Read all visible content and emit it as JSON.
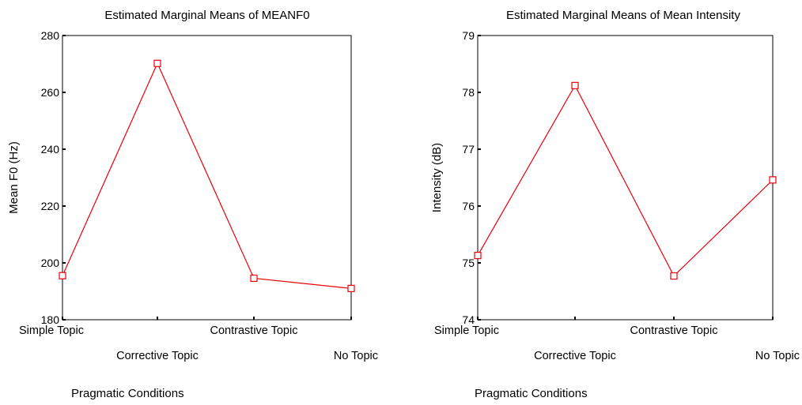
{
  "chart_data": [
    {
      "type": "line",
      "title": "Estimated Marginal Means of MEANF0",
      "xlabel": "Pragmatic Conditions",
      "ylabel": "Mean F0 (Hz)",
      "categories": [
        "Simple Topic",
        "Corrective Topic",
        "Contrastive Topic",
        "No Topic"
      ],
      "ylim": [
        180,
        280
      ],
      "yticks": [
        180,
        200,
        220,
        240,
        260,
        280
      ],
      "series": [
        {
          "values": [
            195.5,
            270.2,
            194.6,
            191.0
          ],
          "color": "#e8000b",
          "marker": "open-square"
        }
      ],
      "grid": false,
      "legend": "none"
    },
    {
      "type": "line",
      "title": "Estimated Marginal Means of Mean Intensity",
      "xlabel": "Pragmatic Conditions",
      "ylabel": "Intensity (dB)",
      "categories": [
        "Simple Topic",
        "Corrective Topic",
        "Contrastive Topic",
        "No Topic"
      ],
      "ylim": [
        74,
        79
      ],
      "yticks": [
        74,
        75,
        76,
        77,
        78,
        79
      ],
      "series": [
        {
          "values": [
            75.13,
            78.12,
            74.77,
            76.46
          ],
          "color": "#e8000b",
          "marker": "open-square"
        }
      ],
      "grid": false,
      "legend": "none"
    }
  ]
}
